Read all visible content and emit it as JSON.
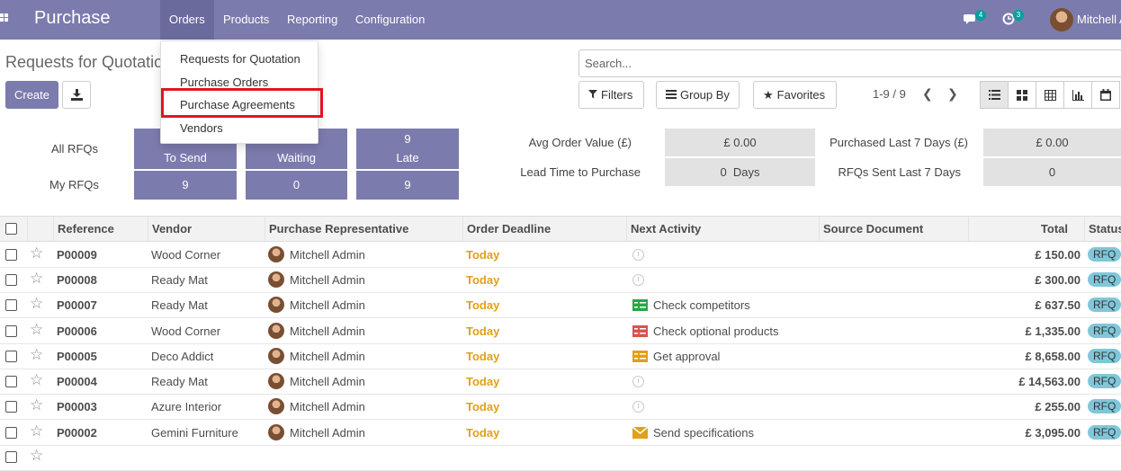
{
  "navbar": {
    "brand": "Purchase",
    "menu": [
      "Orders",
      "Products",
      "Reporting",
      "Configuration"
    ],
    "chat_count": "4",
    "activity_count": "3",
    "user": "Mitchell A"
  },
  "dropdown": {
    "items": [
      "Requests for Quotation",
      "Purchase Orders",
      "Purchase Agreements",
      "Vendors"
    ],
    "highlighted": "Purchase Agreements"
  },
  "control": {
    "breadcrumb": "Requests for Quotatio",
    "create": "Create",
    "search_placeholder": "Search...",
    "filters": "Filters",
    "group_by": "Group By",
    "favorites": "Favorites",
    "pager": "1-9 / 9"
  },
  "dashboard": {
    "all_rfqs": "All RFQs",
    "my_rfqs": "My RFQs",
    "tiles": [
      {
        "top": "",
        "label": "To Send",
        "my": "9"
      },
      {
        "top": "",
        "label": "Waiting",
        "my": "0"
      },
      {
        "top": "9",
        "label": "Late",
        "my": "9"
      }
    ],
    "kpis": [
      {
        "label": "Avg Order Value (£)",
        "value": "£ 0.00"
      },
      {
        "label": "Purchased Last 7 Days (£)",
        "value": "£ 0.00"
      },
      {
        "label": "Lead Time to Purchase",
        "value": "0  Days"
      },
      {
        "label": "RFQs Sent Last 7 Days",
        "value": "0"
      }
    ]
  },
  "table": {
    "headers": [
      "Reference",
      "Vendor",
      "Purchase Representative",
      "Order Deadline",
      "Next Activity",
      "Source Document",
      "Total",
      "Status"
    ],
    "rows": [
      {
        "ref": "P00009",
        "vendor": "Wood Corner",
        "rep": "Mitchell Admin",
        "deadline": "Today",
        "activity": "",
        "activity_icon": "clock",
        "total": "£ 150.00",
        "status": "RFQ"
      },
      {
        "ref": "P00008",
        "vendor": "Ready Mat",
        "rep": "Mitchell Admin",
        "deadline": "Today",
        "activity": "",
        "activity_icon": "clock",
        "total": "£ 300.00",
        "status": "RFQ"
      },
      {
        "ref": "P00007",
        "vendor": "Ready Mat",
        "rep": "Mitchell Admin",
        "deadline": "Today",
        "activity": "Check competitors",
        "activity_icon": "list-green",
        "total": "£ 637.50",
        "status": "RFQ"
      },
      {
        "ref": "P00006",
        "vendor": "Wood Corner",
        "rep": "Mitchell Admin",
        "deadline": "Today",
        "activity": "Check optional products",
        "activity_icon": "list-red",
        "total": "£ 1,335.00",
        "status": "RFQ"
      },
      {
        "ref": "P00005",
        "vendor": "Deco Addict",
        "rep": "Mitchell Admin",
        "deadline": "Today",
        "activity": "Get approval",
        "activity_icon": "list-orange",
        "total": "£ 8,658.00",
        "status": "RFQ"
      },
      {
        "ref": "P00004",
        "vendor": "Ready Mat",
        "rep": "Mitchell Admin",
        "deadline": "Today",
        "activity": "",
        "activity_icon": "clock",
        "total": "£ 14,563.00",
        "status": "RFQ"
      },
      {
        "ref": "P00003",
        "vendor": "Azure Interior",
        "rep": "Mitchell Admin",
        "deadline": "Today",
        "activity": "",
        "activity_icon": "clock",
        "total": "£ 255.00",
        "status": "RFQ"
      },
      {
        "ref": "P00002",
        "vendor": "Gemini Furniture",
        "rep": "Mitchell Admin",
        "deadline": "Today",
        "activity": "Send specifications",
        "activity_icon": "envelope",
        "total": "£ 3,095.00",
        "status": "RFQ"
      }
    ]
  },
  "colors": {
    "brand": "#7c7bad",
    "today": "#e0a019",
    "status_badge": "#7fc7d9",
    "highlight": "#e0161e"
  }
}
